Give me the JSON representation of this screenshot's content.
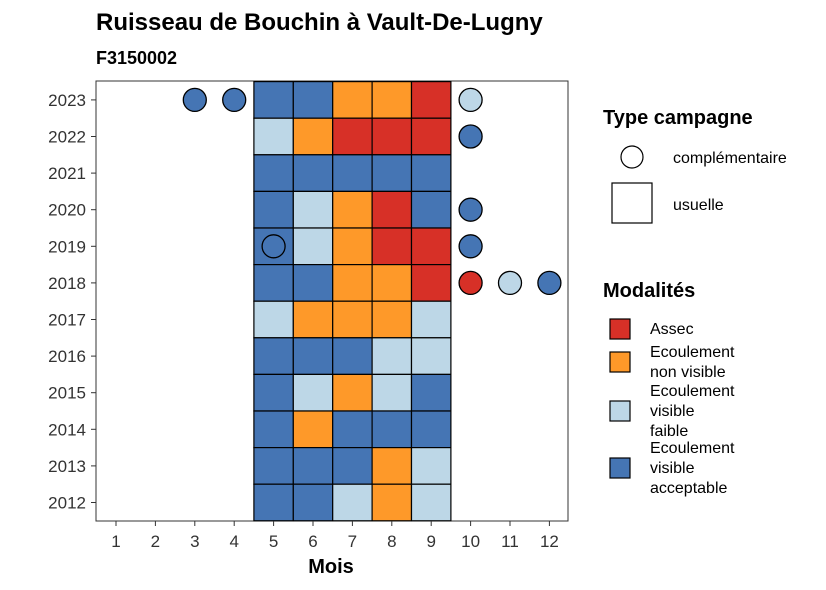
{
  "chart_data": {
    "type": "heatmap",
    "title": "Ruisseau de Bouchin à Vault-De-Lugny",
    "subtitle": "F3150002",
    "xlabel": "Mois",
    "ylabel": "",
    "x_ticks": [
      "1",
      "2",
      "3",
      "4",
      "5",
      "6",
      "7",
      "8",
      "9",
      "10",
      "11",
      "12"
    ],
    "y_ticks": [
      "2012",
      "2013",
      "2014",
      "2015",
      "2016",
      "2017",
      "2018",
      "2019",
      "2020",
      "2021",
      "2022",
      "2023"
    ],
    "modalites": [
      {
        "key": "assec",
        "label": [
          "Assec"
        ],
        "color": "#D73027"
      },
      {
        "key": "nonvisible",
        "label": [
          "Ecoulement",
          "non visible"
        ],
        "color": "#FE9929"
      },
      {
        "key": "faible",
        "label": [
          "Ecoulement",
          "visible",
          "faible"
        ],
        "color": "#BDD7E7"
      },
      {
        "key": "acceptable",
        "label": [
          "Ecoulement",
          "visible",
          "acceptable"
        ],
        "color": "#4575B4"
      }
    ],
    "type_campagne": {
      "title": "Type campagne",
      "complementaire": "complémentaire",
      "usuelle": "usuelle"
    },
    "legend_title_modalites": "Modalités",
    "usuelle": [
      {
        "year": 2023,
        "values": {
          "5": "acceptable",
          "6": "acceptable",
          "7": "nonvisible",
          "8": "nonvisible",
          "9": "assec"
        }
      },
      {
        "year": 2022,
        "values": {
          "5": "faible",
          "6": "nonvisible",
          "7": "assec",
          "8": "assec",
          "9": "assec"
        }
      },
      {
        "year": 2021,
        "values": {
          "5": "acceptable",
          "6": "acceptable",
          "7": "acceptable",
          "8": "acceptable",
          "9": "acceptable"
        }
      },
      {
        "year": 2020,
        "values": {
          "5": "acceptable",
          "6": "faible",
          "7": "nonvisible",
          "8": "assec",
          "9": "acceptable"
        }
      },
      {
        "year": 2019,
        "values": {
          "5": "acceptable",
          "6": "faible",
          "7": "nonvisible",
          "8": "assec",
          "9": "assec"
        }
      },
      {
        "year": 2018,
        "values": {
          "5": "acceptable",
          "6": "acceptable",
          "7": "nonvisible",
          "8": "nonvisible",
          "9": "assec"
        }
      },
      {
        "year": 2017,
        "values": {
          "5": "faible",
          "6": "nonvisible",
          "7": "nonvisible",
          "8": "nonvisible",
          "9": "faible"
        }
      },
      {
        "year": 2016,
        "values": {
          "5": "acceptable",
          "6": "acceptable",
          "7": "acceptable",
          "8": "faible",
          "9": "faible"
        }
      },
      {
        "year": 2015,
        "values": {
          "5": "acceptable",
          "6": "faible",
          "7": "nonvisible",
          "8": "faible",
          "9": "acceptable"
        }
      },
      {
        "year": 2014,
        "values": {
          "5": "acceptable",
          "6": "nonvisible",
          "7": "acceptable",
          "8": "acceptable",
          "9": "acceptable"
        }
      },
      {
        "year": 2013,
        "values": {
          "5": "acceptable",
          "6": "acceptable",
          "7": "acceptable",
          "8": "nonvisible",
          "9": "faible"
        }
      },
      {
        "year": 2012,
        "values": {
          "5": "acceptable",
          "6": "acceptable",
          "7": "faible",
          "8": "nonvisible",
          "9": "faible"
        }
      }
    ],
    "complementaire": [
      {
        "year": 2023,
        "month": 3,
        "value": "acceptable"
      },
      {
        "year": 2023,
        "month": 4,
        "value": "acceptable"
      },
      {
        "year": 2023,
        "month": 10,
        "value": "faible"
      },
      {
        "year": 2022,
        "month": 10,
        "value": "acceptable"
      },
      {
        "year": 2020,
        "month": 10,
        "value": "acceptable"
      },
      {
        "year": 2019,
        "month": 5,
        "value": "acceptable"
      },
      {
        "year": 2019,
        "month": 10,
        "value": "acceptable"
      },
      {
        "year": 2018,
        "month": 10,
        "value": "assec"
      },
      {
        "year": 2018,
        "month": 11,
        "value": "faible"
      },
      {
        "year": 2018,
        "month": 12,
        "value": "acceptable"
      }
    ]
  }
}
